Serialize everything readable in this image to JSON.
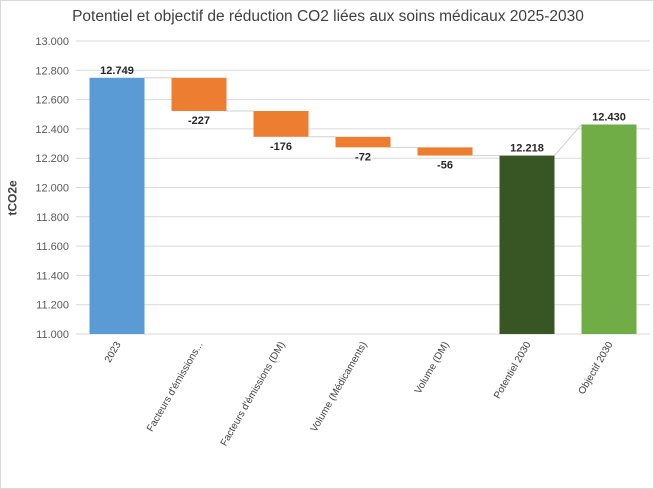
{
  "chart_data": {
    "type": "waterfall",
    "title": "Potentiel et objectif de réduction CO2 liées aux soins médicaux 2025-2030",
    "xlabel": "",
    "ylabel": "tCO2e",
    "ylim": [
      11000,
      13000
    ],
    "yticks": [
      11000,
      11200,
      11400,
      11600,
      11800,
      12000,
      12200,
      12400,
      12600,
      12800,
      13000
    ],
    "ytick_labels": [
      "11.000",
      "11.200",
      "11.400",
      "11.600",
      "11.800",
      "12.000",
      "12.200",
      "12.400",
      "12.600",
      "12.800",
      "13.000"
    ],
    "grid": true,
    "categories": [
      "2023",
      "Facteurs d'émissions...",
      "Facteurs d'émissions (DM)",
      "Volume (Médicaments)",
      "Volume (DM)",
      "Potentiel 2030",
      "Objectif 2030"
    ],
    "values": [
      12749,
      -227,
      -176,
      -72,
      -56,
      12218,
      12430
    ],
    "kinds": [
      "total",
      "delta",
      "delta",
      "delta",
      "delta",
      "total",
      "total"
    ],
    "data_labels": [
      "12.749",
      "-227",
      "-176",
      "-72",
      "-56",
      "12.218",
      "12.430"
    ],
    "colors": [
      "#5b9bd5",
      "#ed7d31",
      "#ed7d31",
      "#ed7d31",
      "#ed7d31",
      "#375623",
      "#70ad47"
    ]
  }
}
